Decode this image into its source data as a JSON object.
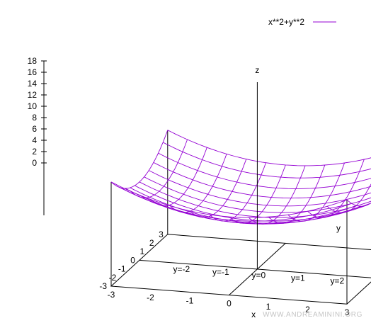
{
  "chart_data": {
    "type": "surface",
    "function": "x**2+y**2",
    "series": [
      {
        "name": "x**2+y**2",
        "color": "#9400d3"
      }
    ],
    "x": {
      "label": "x",
      "range": [
        -3,
        3
      ],
      "ticks": [
        "-3",
        "-2",
        "-1",
        "0",
        "1",
        "2",
        "3"
      ]
    },
    "y": {
      "label": "y",
      "range": [
        -3,
        3
      ],
      "ticks": [
        "-3",
        "-2",
        "-1",
        "0",
        "1",
        "2",
        "3"
      ]
    },
    "z": {
      "label": "z",
      "range": [
        0,
        18
      ],
      "ticks": [
        "0",
        "2",
        "4",
        "6",
        "8",
        "10",
        "12",
        "14",
        "16",
        "18"
      ]
    },
    "grid_lines": [
      {
        "label": "y=-2",
        "x": -2
      },
      {
        "label": "y=-1",
        "x": -1
      },
      {
        "label": "y=0",
        "x": 0
      },
      {
        "label": "y=1",
        "x": 1
      },
      {
        "label": "y=2",
        "x": 2
      }
    ],
    "legend_position": "top-right",
    "watermark": "WWW.ANDREAMININI.ORG"
  }
}
